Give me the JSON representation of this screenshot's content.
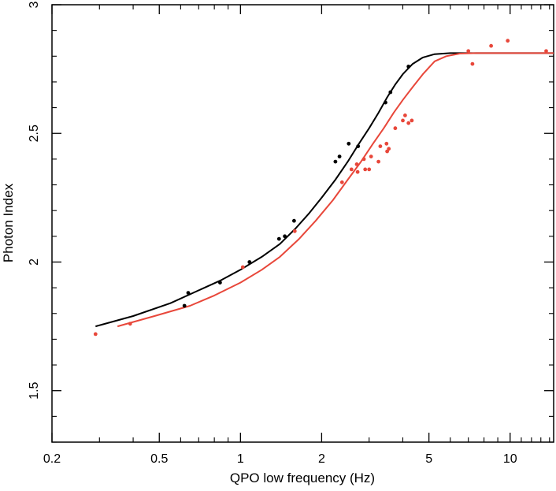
{
  "chart_data": {
    "type": "scatter",
    "title": "",
    "xlabel": "QPO low frequency (Hz)",
    "ylabel": "Photon Index",
    "xscale": "log",
    "xlim": [
      0.2,
      14.5
    ],
    "ylim": [
      1.3,
      3.0
    ],
    "x_ticks": [
      {
        "value": 0.2,
        "label": "0.2"
      },
      {
        "value": 0.5,
        "label": "0.5"
      },
      {
        "value": 1,
        "label": "1"
      },
      {
        "value": 2,
        "label": "2"
      },
      {
        "value": 5,
        "label": "5"
      },
      {
        "value": 10,
        "label": "10"
      }
    ],
    "y_ticks": [
      {
        "value": 1.5,
        "label": "1.5"
      },
      {
        "value": 2,
        "label": "2"
      },
      {
        "value": 2.5,
        "label": "2.5"
      },
      {
        "value": 3,
        "label": "3"
      }
    ],
    "series": [
      {
        "name": "black points",
        "color": "#000000",
        "points": [
          [
            0.62,
            1.83
          ],
          [
            0.64,
            1.88
          ],
          [
            0.84,
            1.92
          ],
          [
            1.08,
            2.0
          ],
          [
            1.39,
            2.09
          ],
          [
            1.46,
            2.1
          ],
          [
            1.58,
            2.16
          ],
          [
            2.25,
            2.39
          ],
          [
            2.33,
            2.41
          ],
          [
            2.52,
            2.46
          ],
          [
            2.73,
            2.45
          ],
          [
            3.45,
            2.62
          ],
          [
            3.6,
            2.66
          ],
          [
            4.2,
            2.76
          ]
        ]
      },
      {
        "name": "red points",
        "color": "#e8473a",
        "points": [
          [
            0.29,
            1.72
          ],
          [
            0.39,
            1.76
          ],
          [
            1.02,
            1.98
          ],
          [
            1.59,
            2.12
          ],
          [
            2.38,
            2.31
          ],
          [
            2.58,
            2.36
          ],
          [
            2.7,
            2.38
          ],
          [
            2.72,
            2.35
          ],
          [
            2.87,
            2.4
          ],
          [
            2.9,
            2.36
          ],
          [
            3.0,
            2.36
          ],
          [
            3.05,
            2.41
          ],
          [
            3.25,
            2.39
          ],
          [
            3.3,
            2.45
          ],
          [
            3.48,
            2.46
          ],
          [
            3.5,
            2.43
          ],
          [
            3.55,
            2.44
          ],
          [
            3.75,
            2.52
          ],
          [
            4.0,
            2.55
          ],
          [
            4.08,
            2.57
          ],
          [
            4.2,
            2.54
          ],
          [
            4.32,
            2.55
          ],
          [
            7.0,
            2.82
          ],
          [
            7.25,
            2.77
          ],
          [
            8.5,
            2.84
          ],
          [
            9.8,
            2.86
          ],
          [
            13.6,
            2.82
          ]
        ]
      }
    ],
    "curves": [
      {
        "name": "black fit",
        "color": "#000000",
        "points": [
          [
            0.29,
            1.75
          ],
          [
            0.4,
            1.79
          ],
          [
            0.55,
            1.84
          ],
          [
            0.7,
            1.89
          ],
          [
            0.85,
            1.93
          ],
          [
            1.0,
            1.97
          ],
          [
            1.2,
            2.02
          ],
          [
            1.4,
            2.07
          ],
          [
            1.6,
            2.13
          ],
          [
            1.8,
            2.19
          ],
          [
            2.0,
            2.25
          ],
          [
            2.25,
            2.32
          ],
          [
            2.5,
            2.39
          ],
          [
            2.75,
            2.46
          ],
          [
            3.0,
            2.52
          ],
          [
            3.25,
            2.58
          ],
          [
            3.5,
            2.64
          ],
          [
            3.75,
            2.69
          ],
          [
            4.0,
            2.73
          ],
          [
            4.35,
            2.77
          ],
          [
            4.75,
            2.795
          ],
          [
            5.25,
            2.808
          ],
          [
            6.0,
            2.812
          ],
          [
            7.5,
            2.812
          ],
          [
            10.0,
            2.812
          ],
          [
            14.5,
            2.812
          ]
        ]
      },
      {
        "name": "red fit",
        "color": "#e8473a",
        "points": [
          [
            0.35,
            1.75
          ],
          [
            0.48,
            1.79
          ],
          [
            0.65,
            1.83
          ],
          [
            0.8,
            1.87
          ],
          [
            1.0,
            1.92
          ],
          [
            1.2,
            1.97
          ],
          [
            1.4,
            2.02
          ],
          [
            1.65,
            2.09
          ],
          [
            1.9,
            2.16
          ],
          [
            2.2,
            2.24
          ],
          [
            2.5,
            2.32
          ],
          [
            2.8,
            2.39
          ],
          [
            3.1,
            2.46
          ],
          [
            3.4,
            2.52
          ],
          [
            3.7,
            2.58
          ],
          [
            4.0,
            2.63
          ],
          [
            4.35,
            2.68
          ],
          [
            4.75,
            2.73
          ],
          [
            5.25,
            2.78
          ],
          [
            5.8,
            2.8
          ],
          [
            6.5,
            2.81
          ],
          [
            7.5,
            2.812
          ],
          [
            10.0,
            2.812
          ],
          [
            14.5,
            2.812
          ]
        ]
      }
    ]
  }
}
